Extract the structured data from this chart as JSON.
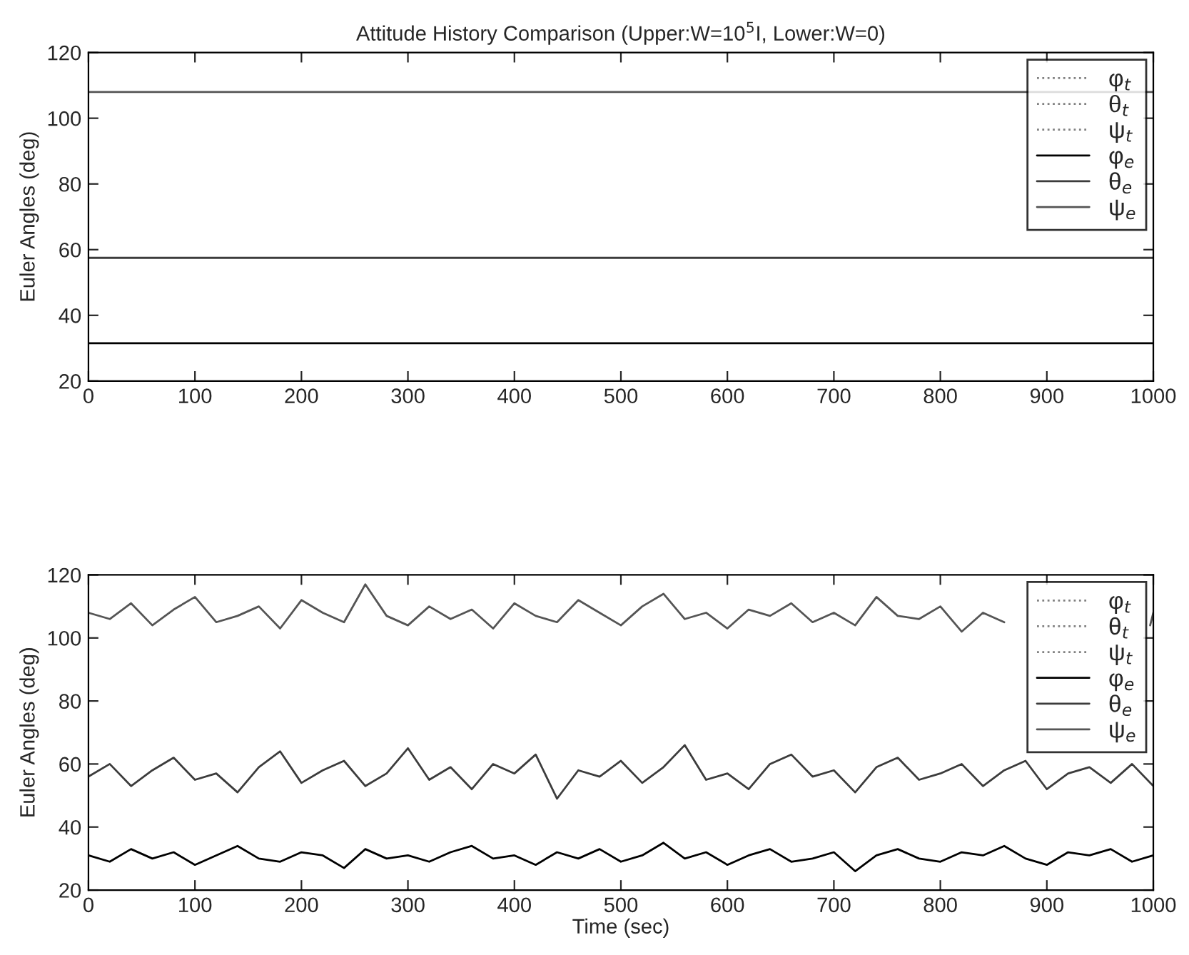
{
  "chart_data": [
    {
      "type": "line",
      "title": "Attitude History Comparison (Upper:W=10$^{5}$I, Lower:W=0)",
      "ylabel": "Euler Angles (deg)",
      "xlim": [
        0,
        1000
      ],
      "ylim": [
        20,
        120
      ],
      "xticks": [
        0,
        100,
        200,
        300,
        400,
        500,
        600,
        700,
        800,
        900,
        1000
      ],
      "yticks": [
        20,
        40,
        60,
        80,
        100,
        120
      ],
      "legend": "top right",
      "grid": false,
      "series": [
        {
          "name": "φ$_{t}$",
          "color": "#808080",
          "line_style": "dotted"
        },
        {
          "name": "θ$_{t}$",
          "color": "#808080",
          "line_style": "dotted"
        },
        {
          "name": "ψ$_{t}$",
          "color": "#808080",
          "line_style": "dotted"
        },
        {
          "name": "φ$_{e}$",
          "color": "#000000",
          "line_style": "solid",
          "x": [
            0,
            1000
          ],
          "values": [
            31.5,
            31.5
          ]
        },
        {
          "name": "θ$_{e}$",
          "color": "#3c3c3c",
          "line_style": "solid",
          "x": [
            0,
            1000
          ],
          "values": [
            57.5,
            57.5
          ]
        },
        {
          "name": "ψ$_{e}$",
          "color": "#555555",
          "line_style": "solid",
          "x": [
            0,
            1000
          ],
          "values": [
            108,
            108
          ]
        }
      ]
    },
    {
      "type": "line",
      "xlabel": "Time (sec)",
      "ylabel": "Euler Angles (deg)",
      "xlim": [
        0,
        1000
      ],
      "ylim": [
        20,
        120
      ],
      "xticks": [
        0,
        100,
        200,
        300,
        400,
        500,
        600,
        700,
        800,
        900,
        1000
      ],
      "yticks": [
        20,
        40,
        60,
        80,
        100,
        120
      ],
      "legend": "top right",
      "grid": false,
      "x": [
        0,
        20,
        40,
        60,
        80,
        100,
        120,
        140,
        160,
        180,
        200,
        220,
        240,
        260,
        280,
        300,
        320,
        340,
        360,
        380,
        400,
        420,
        440,
        460,
        480,
        500,
        520,
        540,
        560,
        580,
        600,
        620,
        640,
        660,
        680,
        700,
        720,
        740,
        760,
        780,
        800,
        820,
        840,
        860,
        880,
        900,
        920,
        940,
        960,
        980,
        1000
      ],
      "series": [
        {
          "name": "φ$_{t}$",
          "color": "#808080",
          "line_style": "dotted",
          "values": [
            null,
            null,
            null,
            null,
            null,
            null,
            null,
            null,
            null,
            null,
            null,
            null,
            null,
            null,
            null,
            null,
            null,
            null,
            null,
            null,
            null,
            null,
            null,
            null,
            null,
            null,
            null,
            null,
            null,
            null,
            null,
            null,
            null,
            null,
            null,
            null,
            null,
            null,
            null,
            null,
            null,
            null,
            null,
            null,
            null,
            null,
            null,
            null,
            null,
            null,
            null
          ]
        },
        {
          "name": "θ$_{t}$",
          "color": "#808080",
          "line_style": "dotted",
          "values": [
            null,
            null,
            null,
            null,
            null,
            null,
            null,
            null,
            null,
            null,
            null,
            null,
            null,
            null,
            null,
            null,
            null,
            null,
            null,
            null,
            null,
            null,
            null,
            null,
            null,
            null,
            null,
            null,
            null,
            null,
            null,
            null,
            null,
            null,
            null,
            null,
            null,
            null,
            null,
            null,
            null,
            null,
            null,
            null,
            null,
            null,
            null,
            null,
            null,
            null,
            null
          ]
        },
        {
          "name": "ψ$_{t}$",
          "color": "#808080",
          "line_style": "dotted",
          "values": [
            null,
            null,
            null,
            null,
            null,
            null,
            null,
            null,
            null,
            null,
            null,
            null,
            null,
            null,
            null,
            null,
            null,
            null,
            null,
            null,
            null,
            null,
            null,
            null,
            null,
            null,
            null,
            null,
            null,
            null,
            null,
            null,
            null,
            null,
            null,
            null,
            null,
            null,
            null,
            null,
            null,
            null,
            null,
            null,
            null,
            null,
            null,
            null,
            null,
            null,
            null
          ]
        },
        {
          "name": "φ$_{e}$",
          "color": "#000000",
          "line_style": "solid",
          "values": [
            31,
            29,
            33,
            30,
            32,
            28,
            31,
            34,
            30,
            29,
            32,
            31,
            27,
            33,
            30,
            31,
            29,
            32,
            34,
            30,
            31,
            28,
            32,
            30,
            33,
            29,
            31,
            35,
            30,
            32,
            28,
            31,
            33,
            29,
            30,
            32,
            26,
            31,
            33,
            30,
            29,
            32,
            31,
            34,
            30,
            28,
            32,
            31,
            33,
            29,
            31
          ]
        },
        {
          "name": "θ$_{e}$",
          "color": "#3c3c3c",
          "line_style": "solid",
          "values": [
            56,
            60,
            53,
            58,
            62,
            55,
            57,
            51,
            59,
            64,
            54,
            58,
            61,
            53,
            57,
            65,
            55,
            59,
            52,
            60,
            57,
            63,
            49,
            58,
            56,
            61,
            54,
            59,
            66,
            55,
            57,
            52,
            60,
            63,
            56,
            58,
            51,
            59,
            62,
            55,
            57,
            60,
            53,
            58,
            61,
            52,
            57,
            59,
            54,
            60,
            53
          ]
        },
        {
          "name": "ψ$_{e}$",
          "color": "#555555",
          "line_style": "solid",
          "x": [
            0,
            20,
            40,
            60,
            80,
            100,
            120,
            140,
            160,
            180,
            200,
            220,
            240,
            260,
            280,
            300,
            320,
            340,
            360,
            380,
            400,
            420,
            440,
            460,
            480,
            500,
            520,
            540,
            560,
            580,
            600,
            620,
            640,
            660,
            680,
            700,
            720,
            740,
            760,
            780,
            800,
            820,
            840,
            860,
            880,
            900,
            920,
            940,
            960,
            980,
            997,
            1000
          ],
          "values": [
            108,
            106,
            111,
            104,
            109,
            113,
            105,
            107,
            110,
            103,
            112,
            108,
            105,
            117,
            107,
            104,
            110,
            106,
            109,
            103,
            111,
            107,
            105,
            112,
            108,
            104,
            110,
            114,
            106,
            108,
            103,
            109,
            107,
            111,
            105,
            108,
            104,
            113,
            107,
            106,
            110,
            102,
            108,
            105,
            null,
            null,
            null,
            null,
            null,
            null,
            104,
            108
          ]
        }
      ]
    }
  ]
}
